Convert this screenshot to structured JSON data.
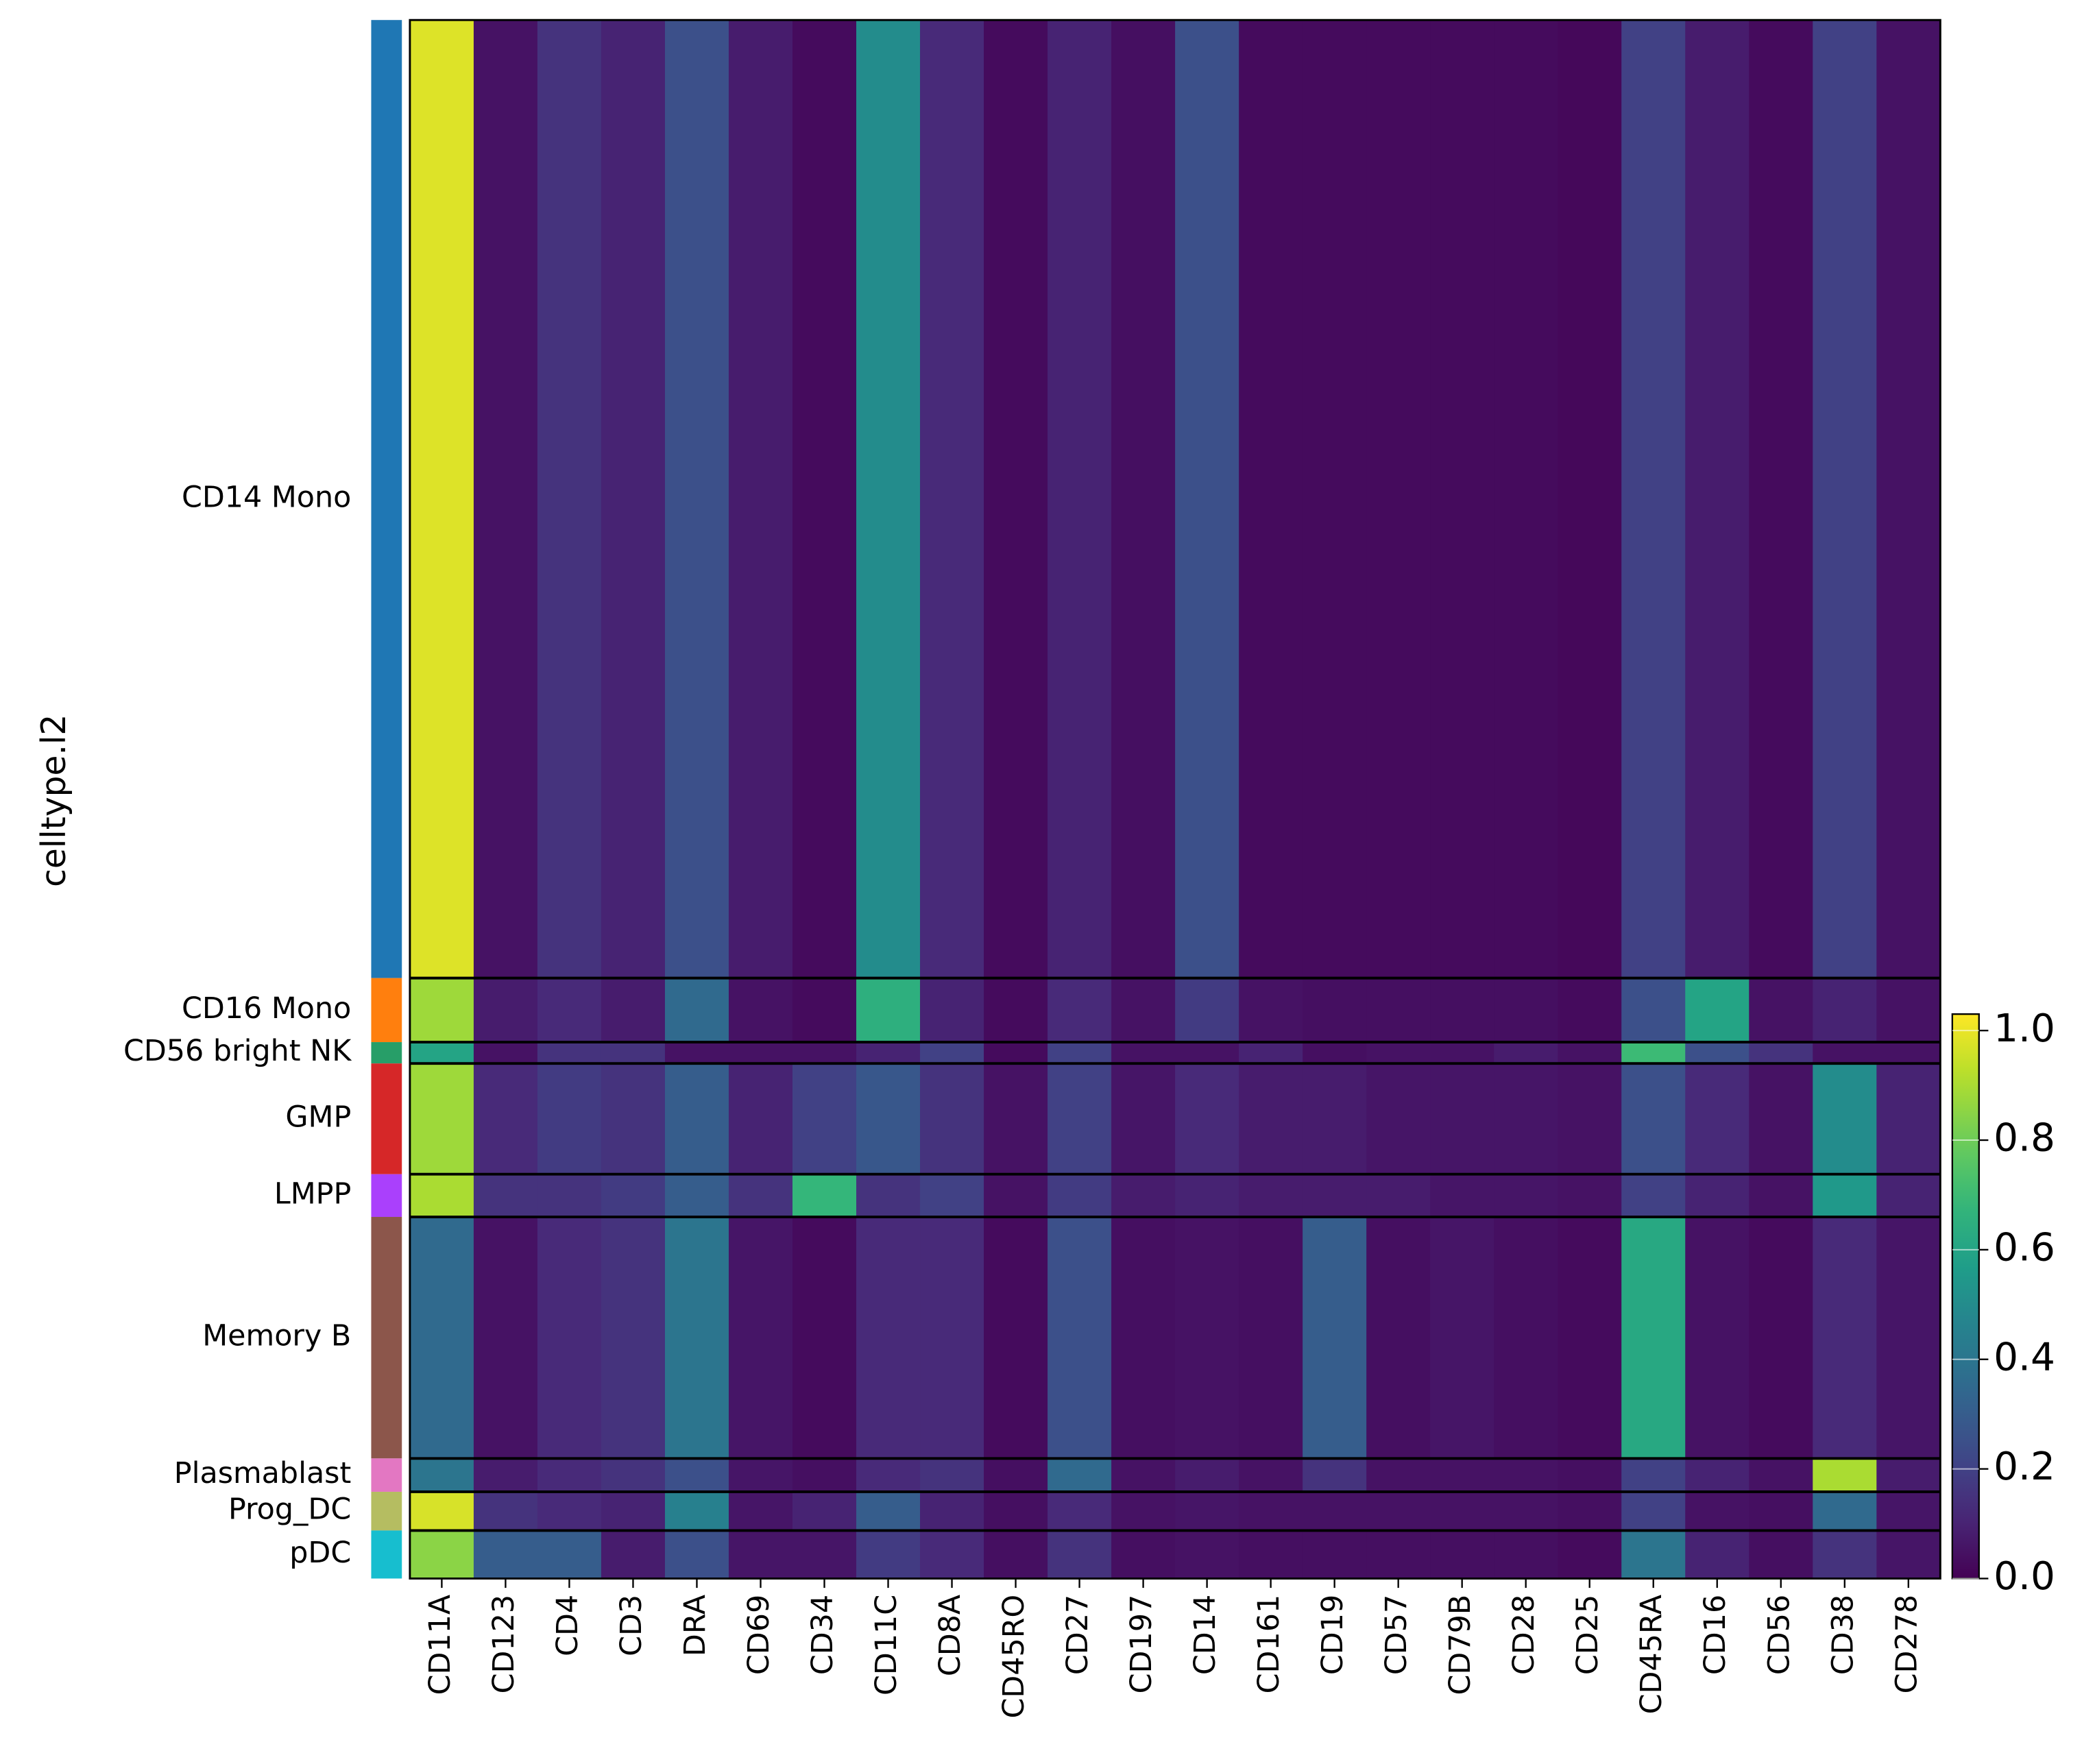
{
  "chart_data": {
    "type": "heatmap",
    "ylabel": "celltype.l2",
    "colormap": "viridis",
    "categories": [
      "CD11A",
      "CD123",
      "CD4",
      "CD3",
      "DRA",
      "CD69",
      "CD34",
      "CD11C",
      "CD8A",
      "CD45RO",
      "CD27",
      "CD197",
      "CD14",
      "CD161",
      "CD19",
      "CD57",
      "CD79B",
      "CD28",
      "CD25",
      "CD45RA",
      "CD16",
      "CD56",
      "CD38",
      "CD278"
    ],
    "groups": [
      {
        "name": "CD14 Mono",
        "color": "#1f77b4",
        "size": 718
      },
      {
        "name": "CD16 Mono",
        "color": "#ff7f0e",
        "size": 48
      },
      {
        "name": "CD56 bright NK",
        "color": "#279e68",
        "size": 16
      },
      {
        "name": "GMP",
        "color": "#d62728",
        "size": 83
      },
      {
        "name": "LMPP",
        "color": "#aa40fc",
        "size": 32
      },
      {
        "name": "Memory B",
        "color": "#8c564b",
        "size": 181
      },
      {
        "name": "Plasmablast",
        "color": "#e377c2",
        "size": 25
      },
      {
        "name": "Prog_DC",
        "color": "#b5bd61",
        "size": 29
      },
      {
        "name": "pDC",
        "color": "#17becf",
        "size": 36
      }
    ],
    "values": [
      [
        0.98,
        0.05,
        0.15,
        0.1,
        0.25,
        0.08,
        0.03,
        0.5,
        0.12,
        0.03,
        0.1,
        0.04,
        0.25,
        0.03,
        0.03,
        0.03,
        0.03,
        0.03,
        0.02,
        0.2,
        0.08,
        0.03,
        0.2,
        0.05
      ],
      [
        0.88,
        0.08,
        0.12,
        0.08,
        0.35,
        0.05,
        0.03,
        0.65,
        0.1,
        0.03,
        0.12,
        0.05,
        0.18,
        0.05,
        0.04,
        0.04,
        0.04,
        0.04,
        0.03,
        0.25,
        0.6,
        0.05,
        0.1,
        0.05
      ],
      [
        0.6,
        0.05,
        0.15,
        0.15,
        0.05,
        0.05,
        0.05,
        0.1,
        0.2,
        0.03,
        0.2,
        0.05,
        0.05,
        0.1,
        0.04,
        0.05,
        0.05,
        0.08,
        0.05,
        0.7,
        0.25,
        0.15,
        0.05,
        0.05
      ],
      [
        0.88,
        0.12,
        0.18,
        0.15,
        0.3,
        0.1,
        0.2,
        0.28,
        0.15,
        0.05,
        0.2,
        0.06,
        0.12,
        0.08,
        0.08,
        0.06,
        0.06,
        0.06,
        0.05,
        0.25,
        0.12,
        0.05,
        0.5,
        0.1
      ],
      [
        0.9,
        0.15,
        0.15,
        0.18,
        0.3,
        0.15,
        0.68,
        0.15,
        0.2,
        0.05,
        0.18,
        0.08,
        0.1,
        0.08,
        0.08,
        0.08,
        0.06,
        0.06,
        0.05,
        0.2,
        0.1,
        0.05,
        0.55,
        0.1
      ],
      [
        0.35,
        0.05,
        0.12,
        0.15,
        0.4,
        0.06,
        0.03,
        0.12,
        0.12,
        0.03,
        0.25,
        0.04,
        0.05,
        0.04,
        0.3,
        0.04,
        0.06,
        0.04,
        0.03,
        0.62,
        0.05,
        0.03,
        0.12,
        0.06
      ],
      [
        0.4,
        0.08,
        0.12,
        0.15,
        0.25,
        0.06,
        0.04,
        0.12,
        0.15,
        0.04,
        0.35,
        0.05,
        0.08,
        0.05,
        0.15,
        0.05,
        0.05,
        0.05,
        0.04,
        0.2,
        0.1,
        0.05,
        0.9,
        0.08
      ],
      [
        0.97,
        0.15,
        0.12,
        0.1,
        0.45,
        0.06,
        0.1,
        0.3,
        0.1,
        0.04,
        0.12,
        0.05,
        0.06,
        0.05,
        0.05,
        0.05,
        0.05,
        0.05,
        0.04,
        0.2,
        0.05,
        0.04,
        0.35,
        0.06
      ],
      [
        0.85,
        0.3,
        0.3,
        0.08,
        0.25,
        0.06,
        0.06,
        0.18,
        0.12,
        0.04,
        0.15,
        0.04,
        0.05,
        0.04,
        0.04,
        0.04,
        0.04,
        0.04,
        0.03,
        0.4,
        0.1,
        0.04,
        0.15,
        0.06
      ]
    ],
    "clim": [
      0,
      1.03
    ],
    "cticks": [
      {
        "value": 0,
        "label": "0.0"
      },
      0.2,
      0.4,
      0.6,
      0.8,
      {
        "value": 1,
        "label": "1.0"
      }
    ]
  }
}
